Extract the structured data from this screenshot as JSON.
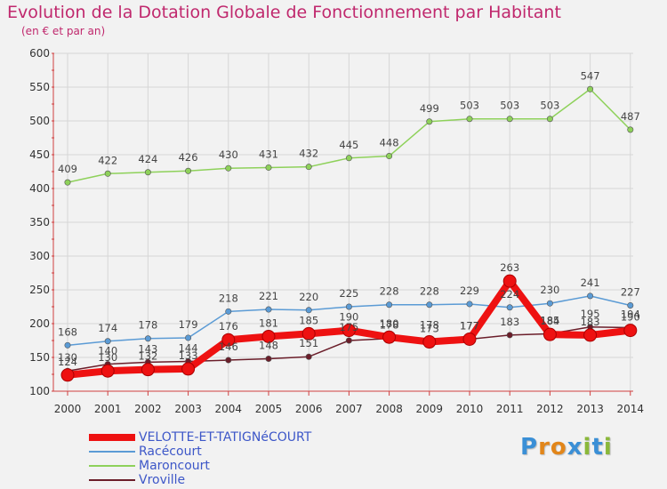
{
  "header": {
    "title": "Evolution de la Dotation Globale de Fonctionnement par Habitant",
    "subtitle": "(en € et par an)"
  },
  "logo": {
    "text": "Proxiti",
    "letters": [
      "P",
      "r",
      "o",
      "x",
      "i",
      "t",
      "i"
    ],
    "colors": [
      "#3a8fd6",
      "#e2861a",
      "#e2861a",
      "#3a8fd6",
      "#8ab83a",
      "#3a8fd6",
      "#8ab83a"
    ]
  },
  "chart_data": {
    "type": "line",
    "title": "Evolution de la Dotation Globale de Fonctionnement par Habitant",
    "subtitle": "(en € et par an)",
    "xlabel": "",
    "ylabel": "",
    "x": [
      "2000",
      "2001",
      "2002",
      "2003",
      "2004",
      "2005",
      "2006",
      "2007",
      "2008",
      "2009",
      "2010",
      "2011",
      "2012",
      "2013",
      "2014"
    ],
    "ylim": [
      100,
      600
    ],
    "yticks": [
      100,
      150,
      200,
      250,
      300,
      350,
      400,
      450,
      500,
      550,
      600
    ],
    "grid": true,
    "legend_position": "bottom-left",
    "series": [
      {
        "name": "VELOTTE-ET-TATIGNéCOURT",
        "color": "#ee1111",
        "thick": true,
        "values": [
          124,
          130,
          132,
          133,
          176,
          181,
          185,
          190,
          180,
          173,
          177,
          263,
          184,
          183,
          190
        ],
        "labels": [
          "124",
          "130",
          "132",
          "133",
          "176",
          "181",
          "185",
          "190",
          "180",
          "173",
          "177",
          "263",
          "184",
          "183",
          "190"
        ]
      },
      {
        "name": "Racécourt",
        "color": "#5b9bd5",
        "thick": false,
        "values": [
          168,
          174,
          178,
          179,
          218,
          221,
          220,
          225,
          228,
          228,
          229,
          224,
          230,
          241,
          227
        ],
        "labels": [
          "168",
          "174",
          "178",
          "179",
          "218",
          "221",
          "220",
          "225",
          "228",
          "228",
          "229",
          "224",
          "230",
          "241",
          "227"
        ]
      },
      {
        "name": "Maroncourt",
        "color": "#8ed15a",
        "thick": false,
        "values": [
          409,
          422,
          424,
          426,
          430,
          431,
          432,
          445,
          448,
          499,
          503,
          503,
          503,
          547,
          487
        ],
        "labels": [
          "409",
          "422",
          "424",
          "426",
          "430",
          "431",
          "432",
          "445",
          "448",
          "499",
          "503",
          "503",
          "503",
          "547",
          "487"
        ]
      },
      {
        "name": "Vroville",
        "color": "#6b1e2a",
        "thick": false,
        "values": [
          130,
          140,
          143,
          144,
          146,
          148,
          151,
          175,
          178,
          178,
          177,
          183,
          185,
          195,
          194
        ],
        "labels": [
          "130",
          "140",
          "143",
          "144",
          "146",
          "148",
          "151",
          "175",
          "178",
          "178",
          "177",
          "183",
          "185",
          "195",
          "194"
        ]
      }
    ]
  }
}
